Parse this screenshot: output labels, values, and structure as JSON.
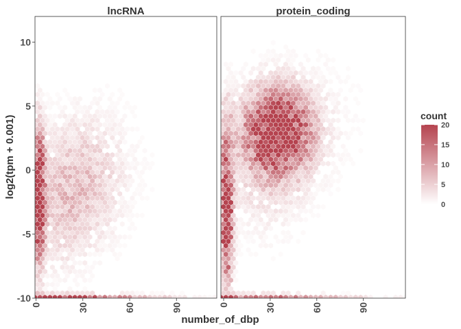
{
  "chart_data": {
    "type": "hexbin",
    "xlabel": "number_of_dbp",
    "ylabel": "log2(tpm + 0.001)",
    "xlim": [
      0,
      112
    ],
    "ylim": [
      -10,
      12
    ],
    "xticks": [
      0,
      30,
      60,
      90
    ],
    "yticks": [
      -10,
      -5,
      0,
      5,
      10
    ],
    "colors": {
      "low": "#ffffff",
      "high": "#b5434f",
      "hex_border": "#ffffff"
    },
    "legend": {
      "title": "count",
      "position": "right",
      "limits": [
        0,
        20
      ],
      "breaks": [
        0,
        5,
        10,
        15,
        20
      ]
    },
    "panels": [
      {
        "name": "lncRNA",
        "clusters": [
          {
            "x": 2,
            "y": -2,
            "sx": 2.5,
            "sy": 3.2,
            "w": 28
          },
          {
            "x": 1,
            "y": -9.9,
            "sx": 45,
            "sy": 0.15,
            "w": 22
          },
          {
            "x": 30,
            "y": -1,
            "sx": 16,
            "sy": 3.2,
            "w": 5
          },
          {
            "x": 15,
            "y": -3,
            "sx": 12,
            "sy": 3.5,
            "w": 3
          },
          {
            "x": 50,
            "y": 1,
            "sx": 22,
            "sy": 4,
            "w": 0.6
          }
        ]
      },
      {
        "name": "protein_coding",
        "clusters": [
          {
            "x": 35,
            "y": 3,
            "sx": 14,
            "sy": 2.1,
            "w": 26
          },
          {
            "x": 2,
            "y": -3,
            "sx": 2.5,
            "sy": 4,
            "w": 26
          },
          {
            "x": 1,
            "y": -9.9,
            "sx": 50,
            "sy": 0.15,
            "w": 16
          },
          {
            "x": 25,
            "y": 0,
            "sx": 18,
            "sy": 3.5,
            "w": 3
          },
          {
            "x": 55,
            "y": 4,
            "sx": 25,
            "sy": 4,
            "w": 1
          }
        ]
      }
    ]
  }
}
